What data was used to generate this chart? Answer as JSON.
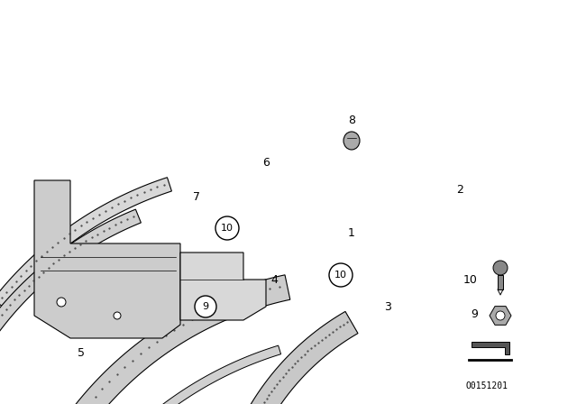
{
  "bg_color": "#ffffff",
  "fig_width": 6.4,
  "fig_height": 4.48,
  "dpi": 100,
  "catalog_number": "O0151201",
  "font_size_label": 9,
  "font_size_small": 7,
  "label_color": "#000000"
}
